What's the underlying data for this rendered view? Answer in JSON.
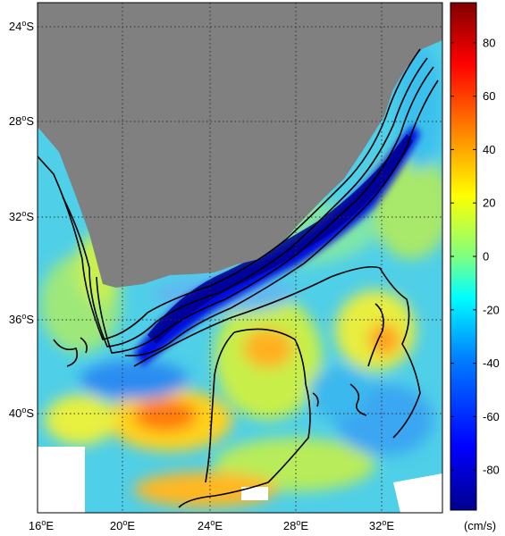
{
  "map": {
    "lat_labels": [
      {
        "deg": "24",
        "hemi": "S"
      },
      {
        "deg": "28",
        "hemi": "S"
      },
      {
        "deg": "32",
        "hemi": "S"
      },
      {
        "deg": "36",
        "hemi": "S"
      },
      {
        "deg": "40",
        "hemi": "S"
      }
    ],
    "lon_labels": [
      {
        "deg": "16",
        "hemi": "E"
      },
      {
        "deg": "20",
        "hemi": "E"
      },
      {
        "deg": "24",
        "hemi": "E"
      },
      {
        "deg": "28",
        "hemi": "E"
      },
      {
        "deg": "32",
        "hemi": "E"
      }
    ],
    "deg_symbol": "o",
    "land_color": "#808080",
    "ocean_base_color": "#55d4e6",
    "gridlines": "dotted"
  },
  "colorbar": {
    "ticks": [
      "80",
      "60",
      "40",
      "20",
      "0",
      "-20",
      "-40",
      "-60",
      "-80"
    ],
    "unit": "(cm/s)",
    "range": [
      -95,
      95
    ],
    "colors": [
      "#00008f",
      "#0000ff",
      "#0080ff",
      "#00ffff",
      "#80ff80",
      "#ffff00",
      "#ff8000",
      "#ff0000",
      "#800000"
    ]
  }
}
